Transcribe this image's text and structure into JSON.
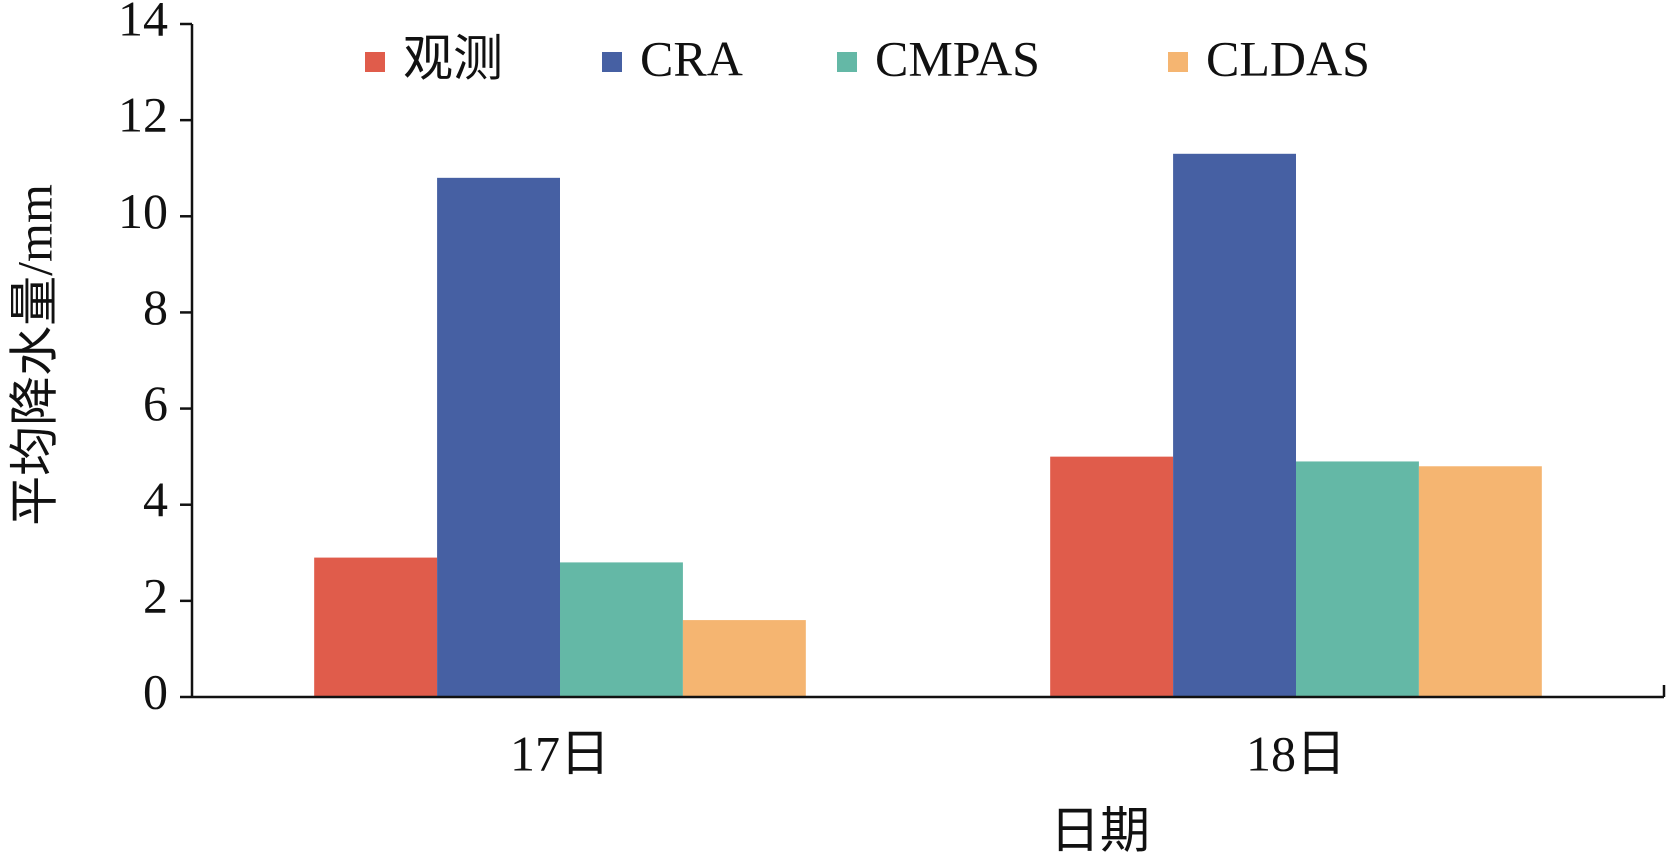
{
  "chart_data": {
    "type": "bar",
    "xlabel": "日期",
    "ylabel": "平均降水量/mm",
    "categories": [
      "17日",
      "18日"
    ],
    "series": [
      {
        "name": "观测",
        "color": "#e05c4b",
        "values": [
          2.9,
          5.0
        ]
      },
      {
        "name": "CRA",
        "color": "#4660a3",
        "values": [
          10.8,
          11.3
        ]
      },
      {
        "name": "CMPAS",
        "color": "#64b8a6",
        "values": [
          2.8,
          4.9
        ]
      },
      {
        "name": "CLDAS",
        "color": "#f5b571",
        "values": [
          1.6,
          4.8
        ]
      }
    ],
    "ylim": [
      0,
      14
    ],
    "yticks": [
      0,
      2,
      4,
      6,
      8,
      10,
      12,
      14
    ],
    "grid": false,
    "legend": "top"
  }
}
